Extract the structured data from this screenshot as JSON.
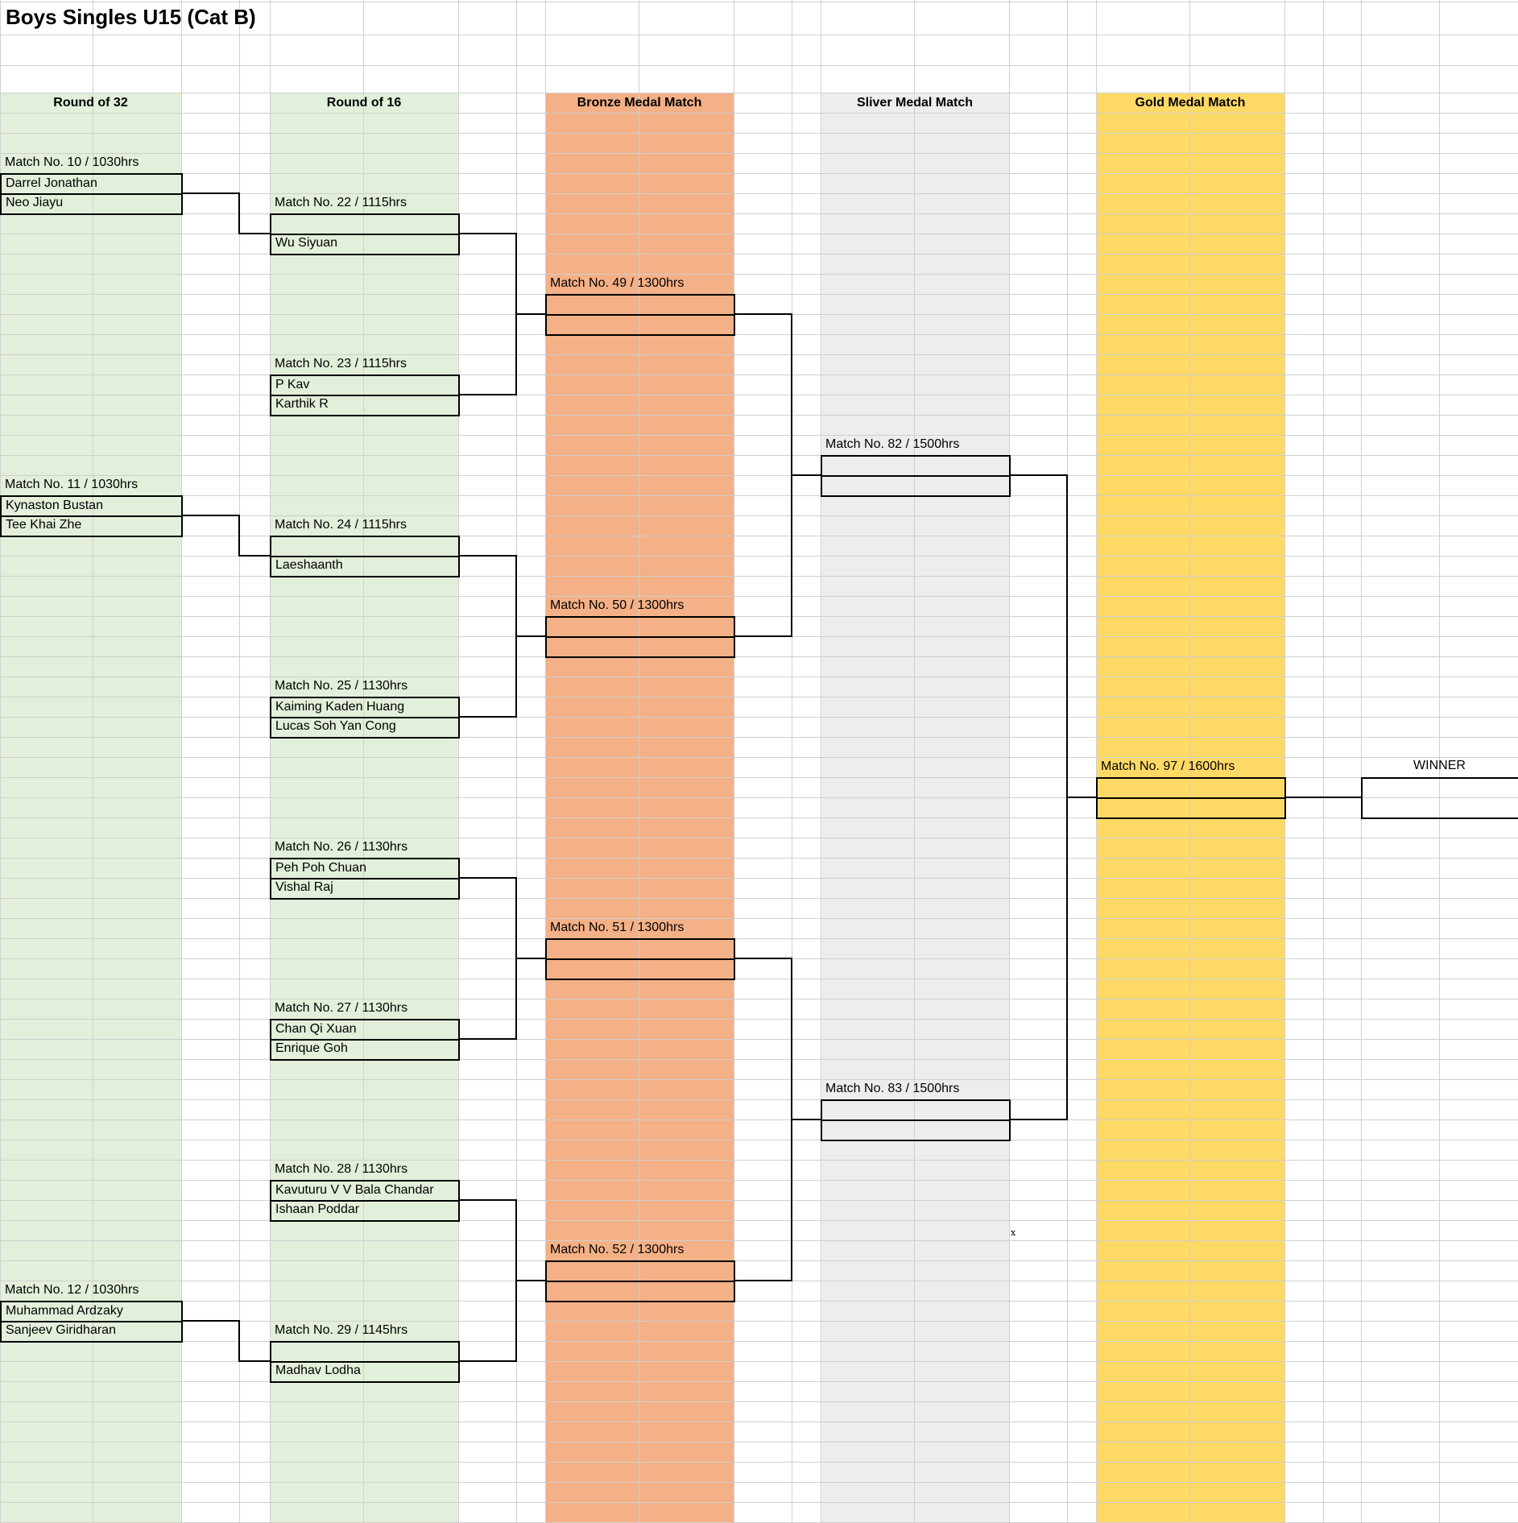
{
  "sheet": {
    "title": "Boys Singles U15 (Cat B)",
    "stray_mark": "x"
  },
  "colors": {
    "round32": "#e2efda",
    "round16": "#e2efda",
    "bronze": "#f4b086",
    "silver": "#ededed",
    "gold": "#ffd966",
    "gridline": "#cfcfcf",
    "border": "#000000"
  },
  "rounds": {
    "r32": "Round of 32",
    "r16": "Round of 16",
    "bronze": "Bronze Medal Match",
    "silver": "Sliver Medal Match",
    "gold": "Gold Medal Match"
  },
  "r32_matches": [
    {
      "label": "Match No. 10 / 1030hrs",
      "players": [
        "Darrel Jonathan",
        "Neo Jiayu"
      ]
    },
    {
      "label": "Match No. 11 / 1030hrs",
      "players": [
        "Kynaston Bustan",
        "Tee Khai Zhe"
      ]
    },
    {
      "label": "Match No. 12 / 1030hrs",
      "players": [
        "Muhammad Ardzaky",
        "Sanjeev Giridharan"
      ]
    }
  ],
  "r16_matches": [
    {
      "label": "Match No. 22 / 1115hrs",
      "players": [
        "",
        "Wu Siyuan"
      ]
    },
    {
      "label": "Match No. 23 / 1115hrs",
      "players": [
        "P Kav",
        "Karthik R"
      ]
    },
    {
      "label": "Match No. 24 / 1115hrs",
      "players": [
        "",
        "Laeshaanth"
      ]
    },
    {
      "label": "Match No. 25 / 1130hrs",
      "players": [
        "Kaiming Kaden Huang",
        "Lucas Soh Yan Cong"
      ]
    },
    {
      "label": "Match No. 26 / 1130hrs",
      "players": [
        "Peh Poh Chuan",
        "Vishal Raj"
      ]
    },
    {
      "label": "Match No. 27 / 1130hrs",
      "players": [
        "Chan Qi Xuan",
        "Enrique Goh"
      ]
    },
    {
      "label": "Match No. 28 / 1130hrs",
      "players": [
        "Kavuturu V V Bala Chandar",
        "Ishaan Poddar"
      ]
    },
    {
      "label": "Match No. 29 / 1145hrs",
      "players": [
        "",
        "Madhav Lodha"
      ]
    }
  ],
  "bronze_matches": [
    {
      "label": "Match No. 49 / 1300hrs",
      "players": [
        "",
        ""
      ]
    },
    {
      "label": "Match No. 50 / 1300hrs",
      "players": [
        "",
        ""
      ]
    },
    {
      "label": "Match No. 51 / 1300hrs",
      "players": [
        "",
        ""
      ]
    },
    {
      "label": "Match No. 52 / 1300hrs",
      "players": [
        "",
        ""
      ]
    }
  ],
  "silver_matches": [
    {
      "label": "Match No. 82 / 1500hrs",
      "players": [
        "",
        ""
      ]
    },
    {
      "label": "Match No. 83 / 1500hrs",
      "players": [
        "",
        ""
      ]
    }
  ],
  "gold_matches": [
    {
      "label": "Match No. 97 / 1600hrs",
      "players": [
        "",
        ""
      ]
    }
  ],
  "winner": {
    "label": "WINNER",
    "name": ""
  }
}
